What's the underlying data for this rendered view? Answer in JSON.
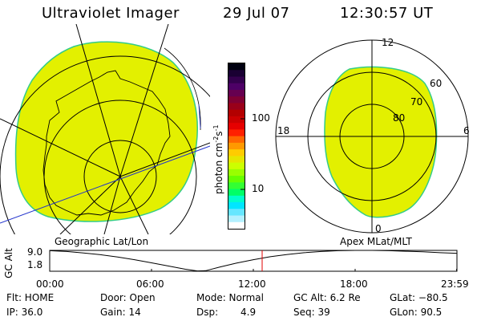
{
  "header": {
    "title": "Ultraviolet Imager",
    "date": "29 Jul 07",
    "time": "12:30:57 UT"
  },
  "panels": {
    "left_label": "Geographic Lat/Lon",
    "right_label": "Apex MLat/MLT"
  },
  "colorbar": {
    "unit_main": "photon cm",
    "unit_sup1": "-2",
    "unit_s": "s",
    "unit_sup2": "-1",
    "ticks": [
      "100",
      "10"
    ],
    "colors_top_to_bottom": [
      "#000010",
      "#1a0033",
      "#33004d",
      "#4d0066",
      "#660050",
      "#800033",
      "#99001a",
      "#b30000",
      "#cc0000",
      "#e60000",
      "#ff2000",
      "#ff6600",
      "#ff9900",
      "#ffcc00",
      "#e6e600",
      "#ccff00",
      "#99ff00",
      "#66ff00",
      "#33ff33",
      "#00ff66",
      "#00ffcc",
      "#00e6ff",
      "#66e6ff",
      "#b3f0ff",
      "#ffffff"
    ]
  },
  "polar": {
    "mlt_labels": {
      "top": "12",
      "right": "6",
      "bottom": "0",
      "left": "18"
    },
    "mlat_labels": [
      "60",
      "70",
      "80"
    ]
  },
  "timeline": {
    "ylabel": "GC Alt",
    "ytick_top": "9.0",
    "ytick_bottom": "1.8",
    "xticks": [
      "00:00",
      "06:00",
      "12:00",
      "18:00",
      "23:59"
    ],
    "current_time_color": "#e00000"
  },
  "chart_data": {
    "type": "line",
    "title": "",
    "xlabel": "",
    "ylabel": "GC Alt",
    "x_unit": "hours UT",
    "xlim": [
      0,
      24
    ],
    "ylim": [
      1.8,
      9.0
    ],
    "x": [
      0,
      1,
      2,
      3,
      4,
      5,
      6,
      7,
      8,
      8.7,
      9.2,
      10,
      11,
      12,
      13,
      14,
      15,
      16,
      17,
      18,
      19,
      20,
      21,
      22,
      23,
      23.98
    ],
    "y": [
      8.9,
      8.6,
      8.1,
      7.5,
      6.7,
      5.8,
      4.7,
      3.6,
      2.5,
      1.9,
      2.0,
      3.2,
      4.6,
      5.8,
      6.8,
      7.6,
      8.2,
      8.6,
      8.9,
      9.0,
      9.0,
      8.9,
      8.7,
      8.5,
      8.2,
      8.0
    ],
    "current_time": 12.52
  },
  "status": {
    "flt": "Flt: HOME",
    "ip": "IP: 36.0",
    "door": "Door: Open",
    "gain": "Gain: 14",
    "mode": "Mode: Normal",
    "dsp_label": "Dsp:",
    "dsp_value": "4.9",
    "gcalt": "GC Alt: 6.2 Re",
    "seq": "Seq: 39",
    "glat": "GLat: −80.5",
    "glon": "GLon: 90.5"
  }
}
